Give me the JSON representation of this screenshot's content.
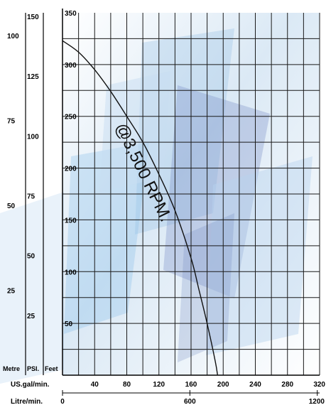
{
  "chart_data": {
    "type": "line",
    "title": "",
    "annotation": "@3,500 RPM.",
    "grid": true,
    "axes": {
      "feet": {
        "label": "Feet",
        "range": [
          0,
          350
        ],
        "ticks": [
          "50",
          "100",
          "150",
          "200",
          "250",
          "300",
          "350"
        ]
      },
      "psi": {
        "label": "PSI.",
        "range": [
          0,
          151.5
        ],
        "ticks": [
          "25",
          "50",
          "75",
          "100",
          "125",
          "150"
        ]
      },
      "metre": {
        "label": "Metre",
        "range": [
          0,
          106.7
        ],
        "ticks": [
          "25",
          "50",
          "75",
          "100"
        ]
      },
      "usgpm": {
        "label": "US.gal/min.",
        "range": [
          0,
          320
        ],
        "ticks": [
          "40",
          "80",
          "120",
          "160",
          "200",
          "240",
          "280",
          "320"
        ]
      },
      "lpm": {
        "label": "Litre/min.",
        "range": [
          0,
          1211
        ],
        "ticks": [
          "0",
          "600",
          "1200"
        ],
        "tick_values": [
          0,
          600,
          1200
        ]
      }
    },
    "series": [
      {
        "x": [
          0,
          20,
          40,
          60,
          80,
          100,
          120,
          140,
          160,
          170,
          180,
          190,
          193
        ],
        "y": [
          323,
          312,
          295,
          274,
          250,
          225,
          194,
          159,
          113,
          82,
          50,
          14,
          0
        ]
      }
    ]
  }
}
